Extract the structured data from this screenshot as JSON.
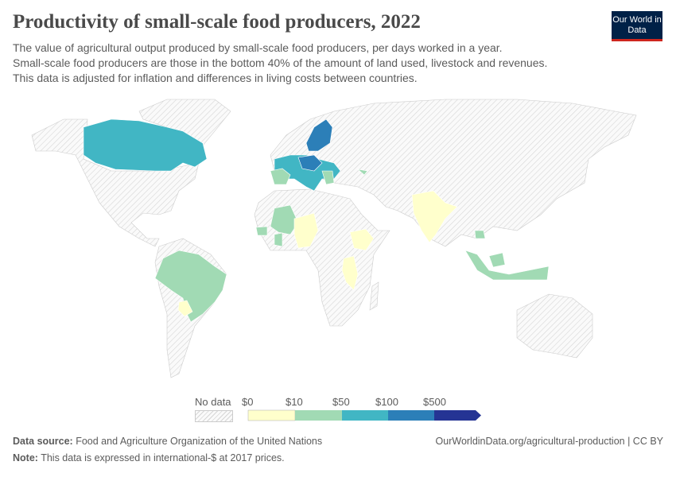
{
  "header": {
    "title": "Productivity of small-scale food producers, 2022",
    "subtitle_lines": [
      "The value of agricultural output produced by small-scale food producers, per days worked in a year.",
      "Small-scale food producers are those in the bottom 40% of the amount of land used, livestock and revenues.",
      "This data is adjusted for inflation and differences in living costs between countries."
    ],
    "logo": "Our World in Data"
  },
  "legend": {
    "no_data_label": "No data",
    "bins": [
      "$0",
      "$10",
      "$50",
      "$100",
      "$500"
    ],
    "colors": [
      "#ffffcc",
      "#a1dab4",
      "#41b6c4",
      "#2c7fb8",
      "#253494"
    ],
    "no_data_pattern": "hatched-gray"
  },
  "footer": {
    "source_label": "Data source:",
    "source": "Food and Agriculture Organization of the United Nations",
    "url": "OurWorldinData.org/agricultural-production | CC BY",
    "note_label": "Note:",
    "note": "This data is expressed in international-$ at 2017 prices."
  }
}
